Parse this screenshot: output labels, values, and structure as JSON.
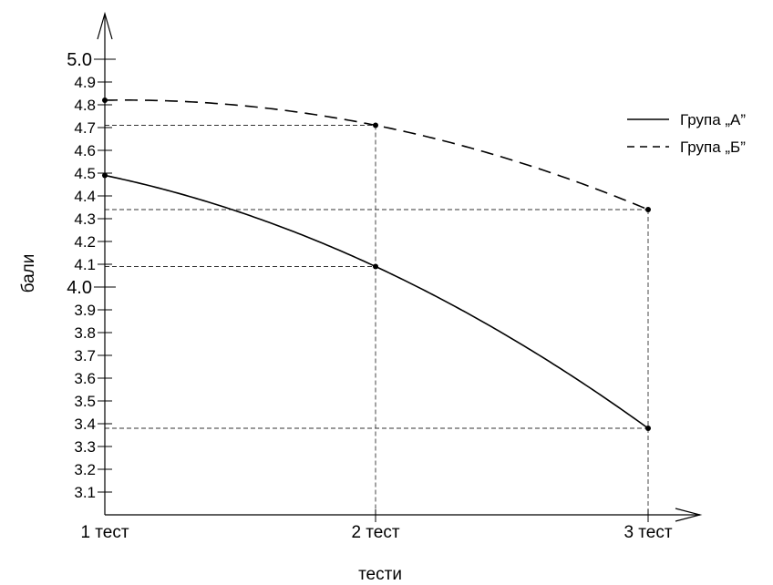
{
  "chart_data": {
    "type": "line",
    "title": "",
    "xlabel": "тести",
    "ylabel": "бали",
    "categories": [
      "1 тест",
      "2 тест",
      "3 тест"
    ],
    "yticks": [
      "3.1",
      "3.2",
      "3.3",
      "3.4",
      "3.5",
      "3.6",
      "3.7",
      "3.8",
      "3.9",
      "4.0",
      "4.1",
      "4.2",
      "4.3",
      "4.4",
      "4.5",
      "4.6",
      "4.7",
      "4.8",
      "4.9",
      "5.0"
    ],
    "major_ticks": [
      "4.0",
      "5.0"
    ],
    "ylim": [
      3.0,
      5.0
    ],
    "series": [
      {
        "name": "Група „А”",
        "values": [
          4.49,
          4.09,
          3.38
        ],
        "dash": "solid"
      },
      {
        "name": "Група „Б”",
        "values": [
          4.82,
          4.71,
          4.34
        ],
        "dash": "dashed"
      }
    ],
    "reference_levels": [
      "4.72",
      "4.35",
      "4.10",
      "3.38"
    ],
    "grid": false,
    "legend_position": "top-right"
  }
}
